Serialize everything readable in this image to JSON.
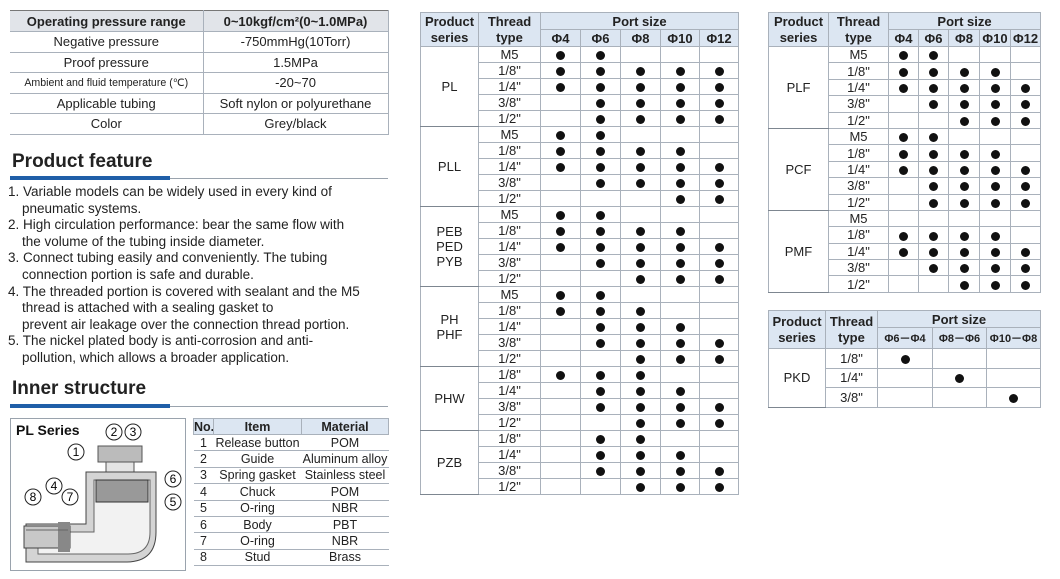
{
  "spec_table": {
    "header": [
      "Operating pressure range",
      "0~10kgf/cm²(0~1.0MPa)"
    ],
    "rows": [
      [
        "Negative pressure",
        "-750mmHg(10Torr)"
      ],
      [
        "Proof pressure",
        "1.5MPa"
      ],
      [
        "Ambient and fluid temperature (℃)",
        "-20~70"
      ],
      [
        "Applicable tubing",
        "Soft nylon or polyurethane"
      ],
      [
        "Color",
        "Grey/black"
      ]
    ]
  },
  "product_feature": {
    "heading": "Product feature",
    "items": [
      [
        "1. Variable models can be widely used in every kind of",
        "pneumatic systems."
      ],
      [
        "2. High circulation performance: bear the same flow with",
        "the volume of the tubing inside diameter."
      ],
      [
        "3. Connect tubing easily and conveniently. The tubing",
        "connection portion is  safe and durable."
      ],
      [
        "4. The threaded portion is covered with sealant and the M5",
        "thread is  attached with a sealing gasket to",
        "prevent air leakage over the connection  thread portion."
      ],
      [
        "5. The nickel plated body is anti-corrosion and anti-",
        "pollution, which allows a broader application."
      ]
    ]
  },
  "inner_structure": {
    "heading": "Inner structure",
    "diagram": {
      "title": "PL Series",
      "callouts": [
        "1",
        "2",
        "3",
        "4",
        "5",
        "6",
        "7",
        "8"
      ]
    },
    "parts_table": {
      "header": [
        "No.",
        "Item",
        "Material"
      ],
      "rows": [
        [
          "1",
          "Release button",
          "POM"
        ],
        [
          "2",
          "Guide",
          "Aluminum alloy"
        ],
        [
          "3",
          "Spring gasket",
          "Stainless steel"
        ],
        [
          "4",
          "Chuck",
          "POM"
        ],
        [
          "5",
          "O-ring",
          "NBR"
        ],
        [
          "6",
          "Body",
          "PBT"
        ],
        [
          "7",
          "O-ring",
          "NBR"
        ],
        [
          "8",
          "Stud",
          "Brass"
        ]
      ]
    }
  },
  "port_table_1": {
    "series_header": [
      "Product",
      "series"
    ],
    "thread_header": [
      "Thread",
      "type"
    ],
    "port_header": "Port size",
    "ports": [
      "Φ4",
      "Φ6",
      "Φ8",
      "Φ10",
      "Φ12"
    ],
    "groups": [
      {
        "series": [
          "PL"
        ],
        "rows": [
          {
            "thread": "M5",
            "available": [
              true,
              true,
              false,
              false,
              false
            ]
          },
          {
            "thread": "1/8\"",
            "available": [
              true,
              true,
              true,
              true,
              true
            ]
          },
          {
            "thread": "1/4\"",
            "available": [
              true,
              true,
              true,
              true,
              true
            ]
          },
          {
            "thread": "3/8\"",
            "available": [
              false,
              true,
              true,
              true,
              true
            ]
          },
          {
            "thread": "1/2\"",
            "available": [
              false,
              true,
              true,
              true,
              true
            ]
          }
        ]
      },
      {
        "series": [
          "PLL"
        ],
        "rows": [
          {
            "thread": "M5",
            "available": [
              true,
              true,
              false,
              false,
              false
            ]
          },
          {
            "thread": "1/8\"",
            "available": [
              true,
              true,
              true,
              true,
              false
            ]
          },
          {
            "thread": "1/4\"",
            "available": [
              true,
              true,
              true,
              true,
              true
            ]
          },
          {
            "thread": "3/8\"",
            "available": [
              false,
              true,
              true,
              true,
              true
            ]
          },
          {
            "thread": "1/2\"",
            "available": [
              false,
              false,
              false,
              true,
              true
            ]
          }
        ]
      },
      {
        "series": [
          "PEB",
          "PED",
          "PYB"
        ],
        "rows": [
          {
            "thread": "M5",
            "available": [
              true,
              true,
              false,
              false,
              false
            ]
          },
          {
            "thread": "1/8\"",
            "available": [
              true,
              true,
              true,
              true,
              false
            ]
          },
          {
            "thread": "1/4\"",
            "available": [
              true,
              true,
              true,
              true,
              true
            ]
          },
          {
            "thread": "3/8\"",
            "available": [
              false,
              true,
              true,
              true,
              true
            ]
          },
          {
            "thread": "1/2\"",
            "available": [
              false,
              false,
              true,
              true,
              true
            ]
          }
        ]
      },
      {
        "series": [
          "PH",
          "PHF"
        ],
        "rows": [
          {
            "thread": "M5",
            "available": [
              true,
              true,
              false,
              false,
              false
            ]
          },
          {
            "thread": "1/8\"",
            "available": [
              true,
              true,
              true,
              false,
              false
            ]
          },
          {
            "thread": "1/4\"",
            "available": [
              false,
              true,
              true,
              true,
              false
            ]
          },
          {
            "thread": "3/8\"",
            "available": [
              false,
              true,
              true,
              true,
              true
            ]
          },
          {
            "thread": "1/2\"",
            "available": [
              false,
              false,
              true,
              true,
              true
            ]
          }
        ]
      },
      {
        "series": [
          "PHW"
        ],
        "rows": [
          {
            "thread": "1/8\"",
            "available": [
              true,
              true,
              true,
              false,
              false
            ]
          },
          {
            "thread": "1/4\"",
            "available": [
              false,
              true,
              true,
              true,
              false
            ]
          },
          {
            "thread": "3/8\"",
            "available": [
              false,
              true,
              true,
              true,
              true
            ]
          },
          {
            "thread": "1/2\"",
            "available": [
              false,
              false,
              true,
              true,
              true
            ]
          }
        ]
      },
      {
        "series": [
          "PZB"
        ],
        "rows": [
          {
            "thread": "1/8\"",
            "available": [
              false,
              true,
              true,
              false,
              false
            ]
          },
          {
            "thread": "1/4\"",
            "available": [
              false,
              true,
              true,
              true,
              false
            ]
          },
          {
            "thread": "3/8\"",
            "available": [
              false,
              true,
              true,
              true,
              true
            ]
          },
          {
            "thread": "1/2\"",
            "available": [
              false,
              false,
              true,
              true,
              true
            ]
          }
        ]
      }
    ]
  },
  "port_table_2": {
    "series_header": [
      "Product",
      "series"
    ],
    "thread_header": [
      "Thread",
      "type"
    ],
    "port_header": "Port size",
    "ports": [
      "Φ4",
      "Φ6",
      "Φ8",
      "Φ10",
      "Φ12"
    ],
    "groups": [
      {
        "series": [
          "PLF"
        ],
        "rows": [
          {
            "thread": "M5",
            "available": [
              true,
              true,
              false,
              false,
              false
            ]
          },
          {
            "thread": "1/8\"",
            "available": [
              true,
              true,
              true,
              true,
              false
            ]
          },
          {
            "thread": "1/4\"",
            "available": [
              true,
              true,
              true,
              true,
              true
            ]
          },
          {
            "thread": "3/8\"",
            "available": [
              false,
              true,
              true,
              true,
              true
            ]
          },
          {
            "thread": "1/2\"",
            "available": [
              false,
              false,
              true,
              true,
              true
            ]
          }
        ]
      },
      {
        "series": [
          "PCF"
        ],
        "rows": [
          {
            "thread": "M5",
            "available": [
              true,
              true,
              false,
              false,
              false
            ]
          },
          {
            "thread": "1/8\"",
            "available": [
              true,
              true,
              true,
              true,
              false
            ]
          },
          {
            "thread": "1/4\"",
            "available": [
              true,
              true,
              true,
              true,
              true
            ]
          },
          {
            "thread": "3/8\"",
            "available": [
              false,
              true,
              true,
              true,
              true
            ]
          },
          {
            "thread": "1/2\"",
            "available": [
              false,
              true,
              true,
              true,
              true
            ]
          }
        ]
      },
      {
        "series": [
          "PMF"
        ],
        "rows": [
          {
            "thread": "M5",
            "available": [
              false,
              false,
              false,
              false,
              false
            ]
          },
          {
            "thread": "1/8\"",
            "available": [
              true,
              true,
              true,
              true,
              false
            ]
          },
          {
            "thread": "1/4\"",
            "available": [
              true,
              true,
              true,
              true,
              true
            ]
          },
          {
            "thread": "3/8\"",
            "available": [
              false,
              true,
              true,
              true,
              true
            ]
          },
          {
            "thread": "1/2\"",
            "available": [
              false,
              false,
              true,
              true,
              true
            ]
          }
        ]
      }
    ]
  },
  "port_table_3": {
    "series_header": [
      "Product",
      "series"
    ],
    "thread_header": [
      "Thread",
      "type"
    ],
    "port_header": "Port size",
    "ports": [
      "Φ6－Φ4",
      "Φ8－Φ6",
      "Φ10－Φ8"
    ],
    "groups": [
      {
        "series": [
          "PKD"
        ],
        "rows": [
          {
            "thread": "1/8\"",
            "available": [
              true,
              false,
              false
            ]
          },
          {
            "thread": "1/4\"",
            "available": [
              false,
              true,
              false
            ]
          },
          {
            "thread": "3/8\"",
            "available": [
              false,
              false,
              true
            ]
          }
        ]
      }
    ]
  }
}
